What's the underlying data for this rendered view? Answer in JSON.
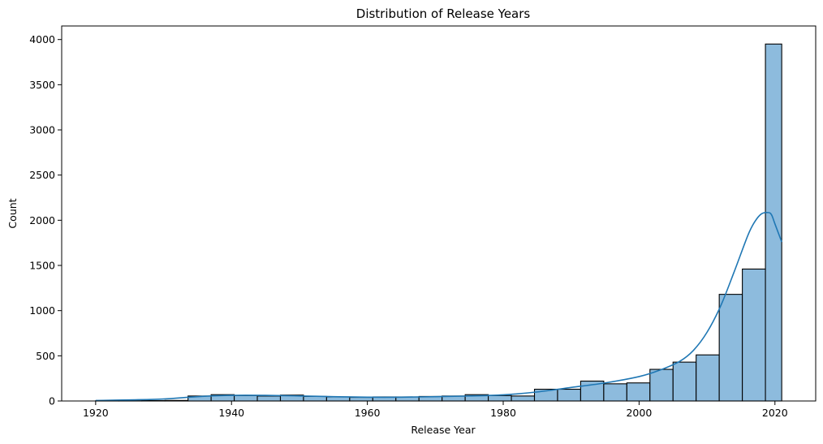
{
  "chart_data": {
    "type": "bar",
    "subtype": "histogram",
    "title": "Distribution of Release Years",
    "xlabel": "Release Year",
    "ylabel": "Count",
    "xlim": [
      1915,
      2026
    ],
    "ylim": [
      0,
      4150
    ],
    "xticks": [
      1920,
      1940,
      1960,
      1980,
      2000,
      2020
    ],
    "yticks": [
      0,
      500,
      1000,
      1500,
      2000,
      2500,
      3000,
      3500,
      4000
    ],
    "bin_edges": [
      1920,
      1923.4,
      1926.8,
      1930.2,
      1933.6,
      1937,
      1940.4,
      1943.8,
      1947.2,
      1950.6,
      1954,
      1957.4,
      1960.8,
      1964.2,
      1967.6,
      1971,
      1974.4,
      1977.8,
      1981.2,
      1984.6,
      1988,
      1991.4,
      1994.8,
      1998.2,
      2001.6,
      2005,
      2008.4,
      2011.8,
      2015.2,
      2018.6,
      2021
    ],
    "values": [
      2,
      3,
      4,
      6,
      55,
      70,
      60,
      55,
      65,
      50,
      45,
      40,
      45,
      45,
      50,
      55,
      70,
      60,
      55,
      130,
      130,
      220,
      190,
      200,
      350,
      430,
      510,
      1180,
      1460,
      3950
    ],
    "kde": {
      "x": [
        1920,
        1925,
        1930,
        1935,
        1940,
        1945,
        1950,
        1955,
        1960,
        1965,
        1970,
        1975,
        1980,
        1985,
        1990,
        1995,
        2000,
        2003,
        2006,
        2008,
        2010,
        2012,
        2014,
        2016,
        2017,
        2018,
        2019,
        2019.5,
        2020,
        2021
      ],
      "y": [
        5,
        12,
        22,
        48,
        62,
        62,
        56,
        48,
        42,
        42,
        48,
        55,
        68,
        100,
        150,
        200,
        270,
        340,
        440,
        560,
        760,
        1050,
        1430,
        1830,
        1980,
        2070,
        2085,
        2060,
        1960,
        1760
      ]
    },
    "colors": {
      "bar_fill": "#8dbbdd",
      "bar_edge": "#000000",
      "kde_line": "#1f77b4"
    },
    "grid": false,
    "legend": "none"
  }
}
